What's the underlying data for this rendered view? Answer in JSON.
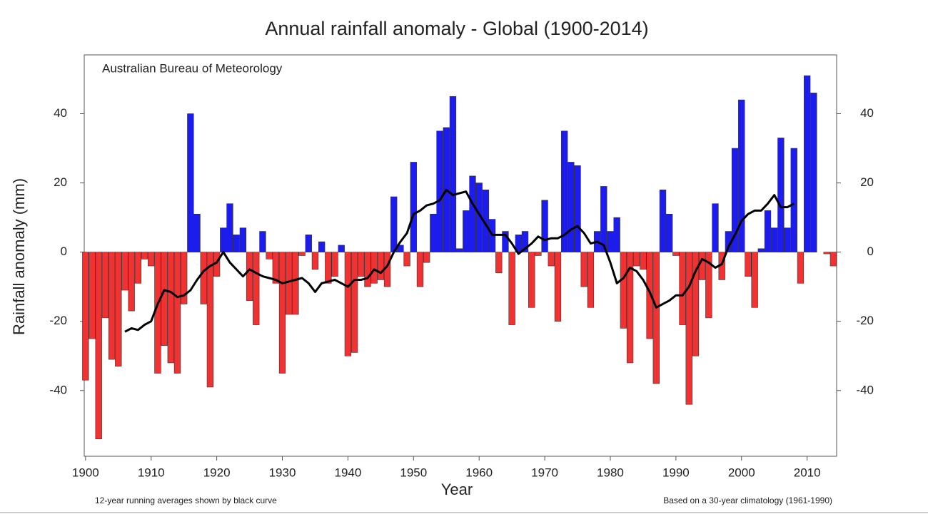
{
  "chart_data": {
    "type": "bar",
    "title": "Annual rainfall anomaly - Global (1900-2014)",
    "annotation": "Australian Bureau of Meteorology",
    "ylabel": "Rainfall anomaly (mm)",
    "xlabel": "Year",
    "footnote_left": "12-year running averages shown by black curve",
    "footnote_right": "Based on a 30-year climatology (1961-1990)",
    "positive_color": "#1c1cf0",
    "negative_color": "#f03232",
    "x": [
      1900,
      1901,
      1902,
      1903,
      1904,
      1905,
      1906,
      1907,
      1908,
      1909,
      1910,
      1911,
      1912,
      1913,
      1914,
      1915,
      1916,
      1917,
      1918,
      1919,
      1920,
      1921,
      1922,
      1923,
      1924,
      1925,
      1926,
      1927,
      1928,
      1929,
      1930,
      1931,
      1932,
      1933,
      1934,
      1935,
      1936,
      1937,
      1938,
      1939,
      1940,
      1941,
      1942,
      1943,
      1944,
      1945,
      1946,
      1947,
      1948,
      1949,
      1950,
      1951,
      1952,
      1953,
      1954,
      1955,
      1956,
      1957,
      1958,
      1959,
      1960,
      1961,
      1962,
      1963,
      1964,
      1965,
      1966,
      1967,
      1968,
      1969,
      1970,
      1971,
      1972,
      1973,
      1974,
      1975,
      1976,
      1977,
      1978,
      1979,
      1980,
      1981,
      1982,
      1983,
      1984,
      1985,
      1986,
      1987,
      1988,
      1989,
      1990,
      1991,
      1992,
      1993,
      1994,
      1995,
      1996,
      1997,
      1998,
      1999,
      2000,
      2001,
      2002,
      2003,
      2004,
      2005,
      2006,
      2007,
      2008,
      2009,
      2010,
      2011,
      2012,
      2013,
      2014
    ],
    "values": [
      -37,
      -25,
      -54,
      -19,
      -31,
      -33,
      -11,
      -17,
      -9,
      -2,
      -4,
      -35,
      -27,
      -32,
      -35,
      -15,
      40,
      11,
      -15,
      -39,
      -7,
      7,
      14,
      5,
      7,
      -14,
      -21,
      6,
      -2,
      -9,
      -35,
      -18,
      -18,
      -1,
      5,
      -5,
      3,
      -9,
      -7,
      2,
      -30,
      -29,
      -7,
      -10,
      -9,
      -8,
      -10,
      16,
      2,
      -4,
      26,
      -10,
      -3,
      11,
      35,
      36,
      45,
      1,
      12,
      22,
      20,
      18,
      9.5,
      -6,
      6,
      -21,
      5,
      6,
      -16,
      -1,
      15,
      -4,
      -20,
      35,
      26,
      25,
      -10,
      -16,
      6,
      19,
      6,
      10,
      -22,
      -32,
      -4,
      -5,
      -25,
      -38,
      18,
      11,
      -1,
      -21,
      -44,
      -30,
      -8,
      -19,
      14,
      -8,
      6,
      30,
      44,
      -7,
      -16,
      1,
      12,
      7,
      33,
      7,
      30,
      -9,
      51,
      46,
      0,
      -0.5,
      -4
    ],
    "line": {
      "color": "#000000",
      "x": [
        1906,
        1907,
        1908,
        1909,
        1910,
        1911,
        1912,
        1913,
        1914,
        1915,
        1916,
        1917,
        1918,
        1919,
        1920,
        1921,
        1922,
        1923,
        1924,
        1925,
        1926,
        1927,
        1928,
        1929,
        1930,
        1931,
        1932,
        1933,
        1934,
        1935,
        1936,
        1937,
        1938,
        1939,
        1940,
        1941,
        1942,
        1943,
        1944,
        1945,
        1946,
        1947,
        1948,
        1949,
        1950,
        1951,
        1952,
        1953,
        1954,
        1955,
        1956,
        1957,
        1958,
        1959,
        1960,
        1961,
        1962,
        1963,
        1964,
        1965,
        1966,
        1967,
        1968,
        1969,
        1970,
        1971,
        1972,
        1973,
        1974,
        1975,
        1976,
        1977,
        1978,
        1979,
        1980,
        1981,
        1982,
        1983,
        1984,
        1985,
        1986,
        1987,
        1988,
        1989,
        1990,
        1991,
        1992,
        1993,
        1994,
        1995,
        1996,
        1997,
        1998,
        1999,
        2000,
        2001,
        2002,
        2003,
        2004,
        2005,
        2006,
        2007,
        2008
      ],
      "values": [
        -23,
        -22,
        -22.5,
        -21,
        -20,
        -15,
        -11,
        -11.5,
        -13,
        -12.5,
        -11,
        -8,
        -5.5,
        -4,
        -3,
        0,
        -3,
        -5,
        -7,
        -5,
        -6,
        -7,
        -7.5,
        -8,
        -9,
        -8.5,
        -8,
        -7.5,
        -9,
        -11.5,
        -9,
        -8.5,
        -8,
        -9,
        -10,
        -8,
        -8,
        -7.5,
        -5,
        -6,
        -4,
        0,
        3,
        5.5,
        11,
        12,
        13.5,
        14,
        15,
        18,
        16.5,
        17,
        17.5,
        14,
        11,
        8,
        5,
        5,
        5,
        2.5,
        -0.5,
        1,
        2.5,
        4.5,
        3.5,
        4,
        4,
        5,
        6.5,
        7.5,
        5.5,
        2.5,
        3,
        2,
        -3,
        -9,
        -7.5,
        -4.5,
        -5.5,
        -8,
        -11.5,
        -16,
        -15,
        -14,
        -12.5,
        -12.5,
        -10,
        -5.5,
        -2,
        -3,
        -4.5,
        -3.5,
        1.5,
        5,
        9,
        11,
        12,
        12,
        14,
        16.5,
        13,
        13,
        14
      ]
    },
    "xlim": [
      1899.8,
      2014.5
    ],
    "xticks": [
      1900,
      1910,
      1920,
      1930,
      1940,
      1950,
      1960,
      1970,
      1980,
      1990,
      2000,
      2010
    ],
    "ylim": [
      -59,
      57
    ],
    "yticks": [
      -40,
      -20,
      0,
      20,
      40
    ],
    "y2lim": [
      -59,
      57
    ],
    "y2ticks": [
      -40,
      -20,
      0,
      20,
      40
    ]
  }
}
